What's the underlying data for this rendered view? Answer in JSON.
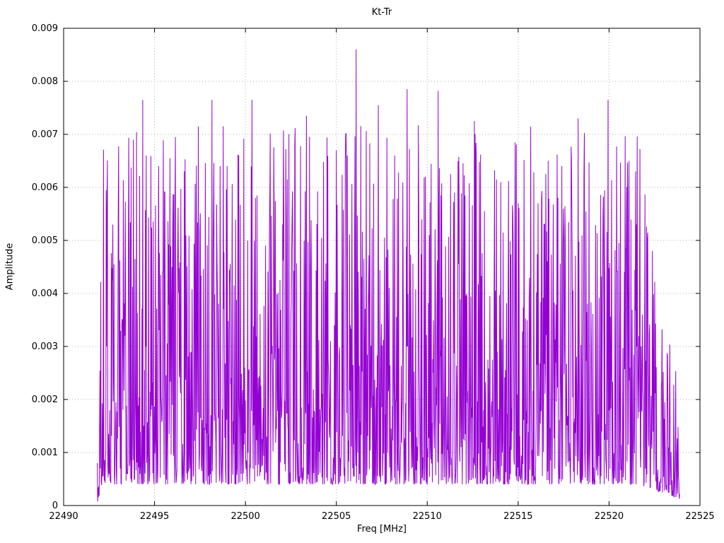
{
  "chart_data": {
    "type": "line",
    "title": "Kt-Tr",
    "xlabel": "Freq [MHz]",
    "ylabel": "Amplitude",
    "xlim": [
      22490,
      22525
    ],
    "ylim": [
      0,
      0.009
    ],
    "grid": true,
    "legend": "none",
    "x_ticks": [
      {
        "v": 22490,
        "label": "22490"
      },
      {
        "v": 22495,
        "label": "22495"
      },
      {
        "v": 22500,
        "label": "22500"
      },
      {
        "v": 22505,
        "label": "22505"
      },
      {
        "v": 22510,
        "label": "22510"
      },
      {
        "v": 22515,
        "label": "22515"
      },
      {
        "v": 22520,
        "label": "22520"
      },
      {
        "v": 22525,
        "label": "22525"
      }
    ],
    "y_ticks": [
      {
        "v": 0,
        "label": "0"
      },
      {
        "v": 0.001,
        "label": "0.001"
      },
      {
        "v": 0.002,
        "label": "0.002"
      },
      {
        "v": 0.003,
        "label": "0.003"
      },
      {
        "v": 0.004,
        "label": "0.004"
      },
      {
        "v": 0.005,
        "label": "0.005"
      },
      {
        "v": 0.006,
        "label": "0.006"
      },
      {
        "v": 0.007,
        "label": "0.007"
      },
      {
        "v": 0.008,
        "label": "0.008"
      },
      {
        "v": 0.009,
        "label": "0.009"
      }
    ],
    "style": {
      "line_color": "#9400d3",
      "grid_color": "#b3b3b3",
      "border_color": "#000000",
      "background": "#ffffff"
    },
    "noise": {
      "seed": 20,
      "n_points": 1500,
      "x_start": 22491.85,
      "x_end": 22523.9,
      "base": 0.0004,
      "amp": 0.0068,
      "shape_exp": 2.4,
      "ramp_in_mhz": 0.3,
      "decay_start": 22521.6,
      "tail_factor": 0.3,
      "first_value": 0.0008,
      "last_value": 0.0002
    },
    "notable_peaks": [
      {
        "x": 22492.35,
        "v": 0.00595
      },
      {
        "x": 22494.35,
        "v": 0.00765
      },
      {
        "x": 22494.55,
        "v": 0.0066
      },
      {
        "x": 22495.85,
        "v": 0.00655
      },
      {
        "x": 22497.4,
        "v": 0.00715
      },
      {
        "x": 22498.15,
        "v": 0.00765
      },
      {
        "x": 22498.6,
        "v": 0.0064
      },
      {
        "x": 22499.0,
        "v": 0.0064
      },
      {
        "x": 22500.35,
        "v": 0.00765
      },
      {
        "x": 22501.1,
        "v": 0.0049
      },
      {
        "x": 22502.3,
        "v": 0.00615
      },
      {
        "x": 22503.35,
        "v": 0.00735
      },
      {
        "x": 22504.3,
        "v": 0.00648
      },
      {
        "x": 22505.0,
        "v": 0.0067
      },
      {
        "x": 22505.6,
        "v": 0.0066
      },
      {
        "x": 22506.1,
        "v": 0.0086
      },
      {
        "x": 22507.3,
        "v": 0.00755
      },
      {
        "x": 22508.2,
        "v": 0.0066
      },
      {
        "x": 22508.9,
        "v": 0.00785
      },
      {
        "x": 22509.9,
        "v": 0.0062
      },
      {
        "x": 22510.6,
        "v": 0.00782
      },
      {
        "x": 22511.5,
        "v": 0.0059
      },
      {
        "x": 22512.6,
        "v": 0.00725
      },
      {
        "x": 22513.8,
        "v": 0.00615
      },
      {
        "x": 22515.0,
        "v": 0.0057
      },
      {
        "x": 22516.1,
        "v": 0.0057
      },
      {
        "x": 22517.4,
        "v": 0.0064
      },
      {
        "x": 22518.3,
        "v": 0.0073
      },
      {
        "x": 22518.9,
        "v": 0.00647
      },
      {
        "x": 22519.95,
        "v": 0.00765
      },
      {
        "x": 22521.1,
        "v": 0.0065
      },
      {
        "x": 22521.5,
        "v": 0.0053
      }
    ]
  }
}
